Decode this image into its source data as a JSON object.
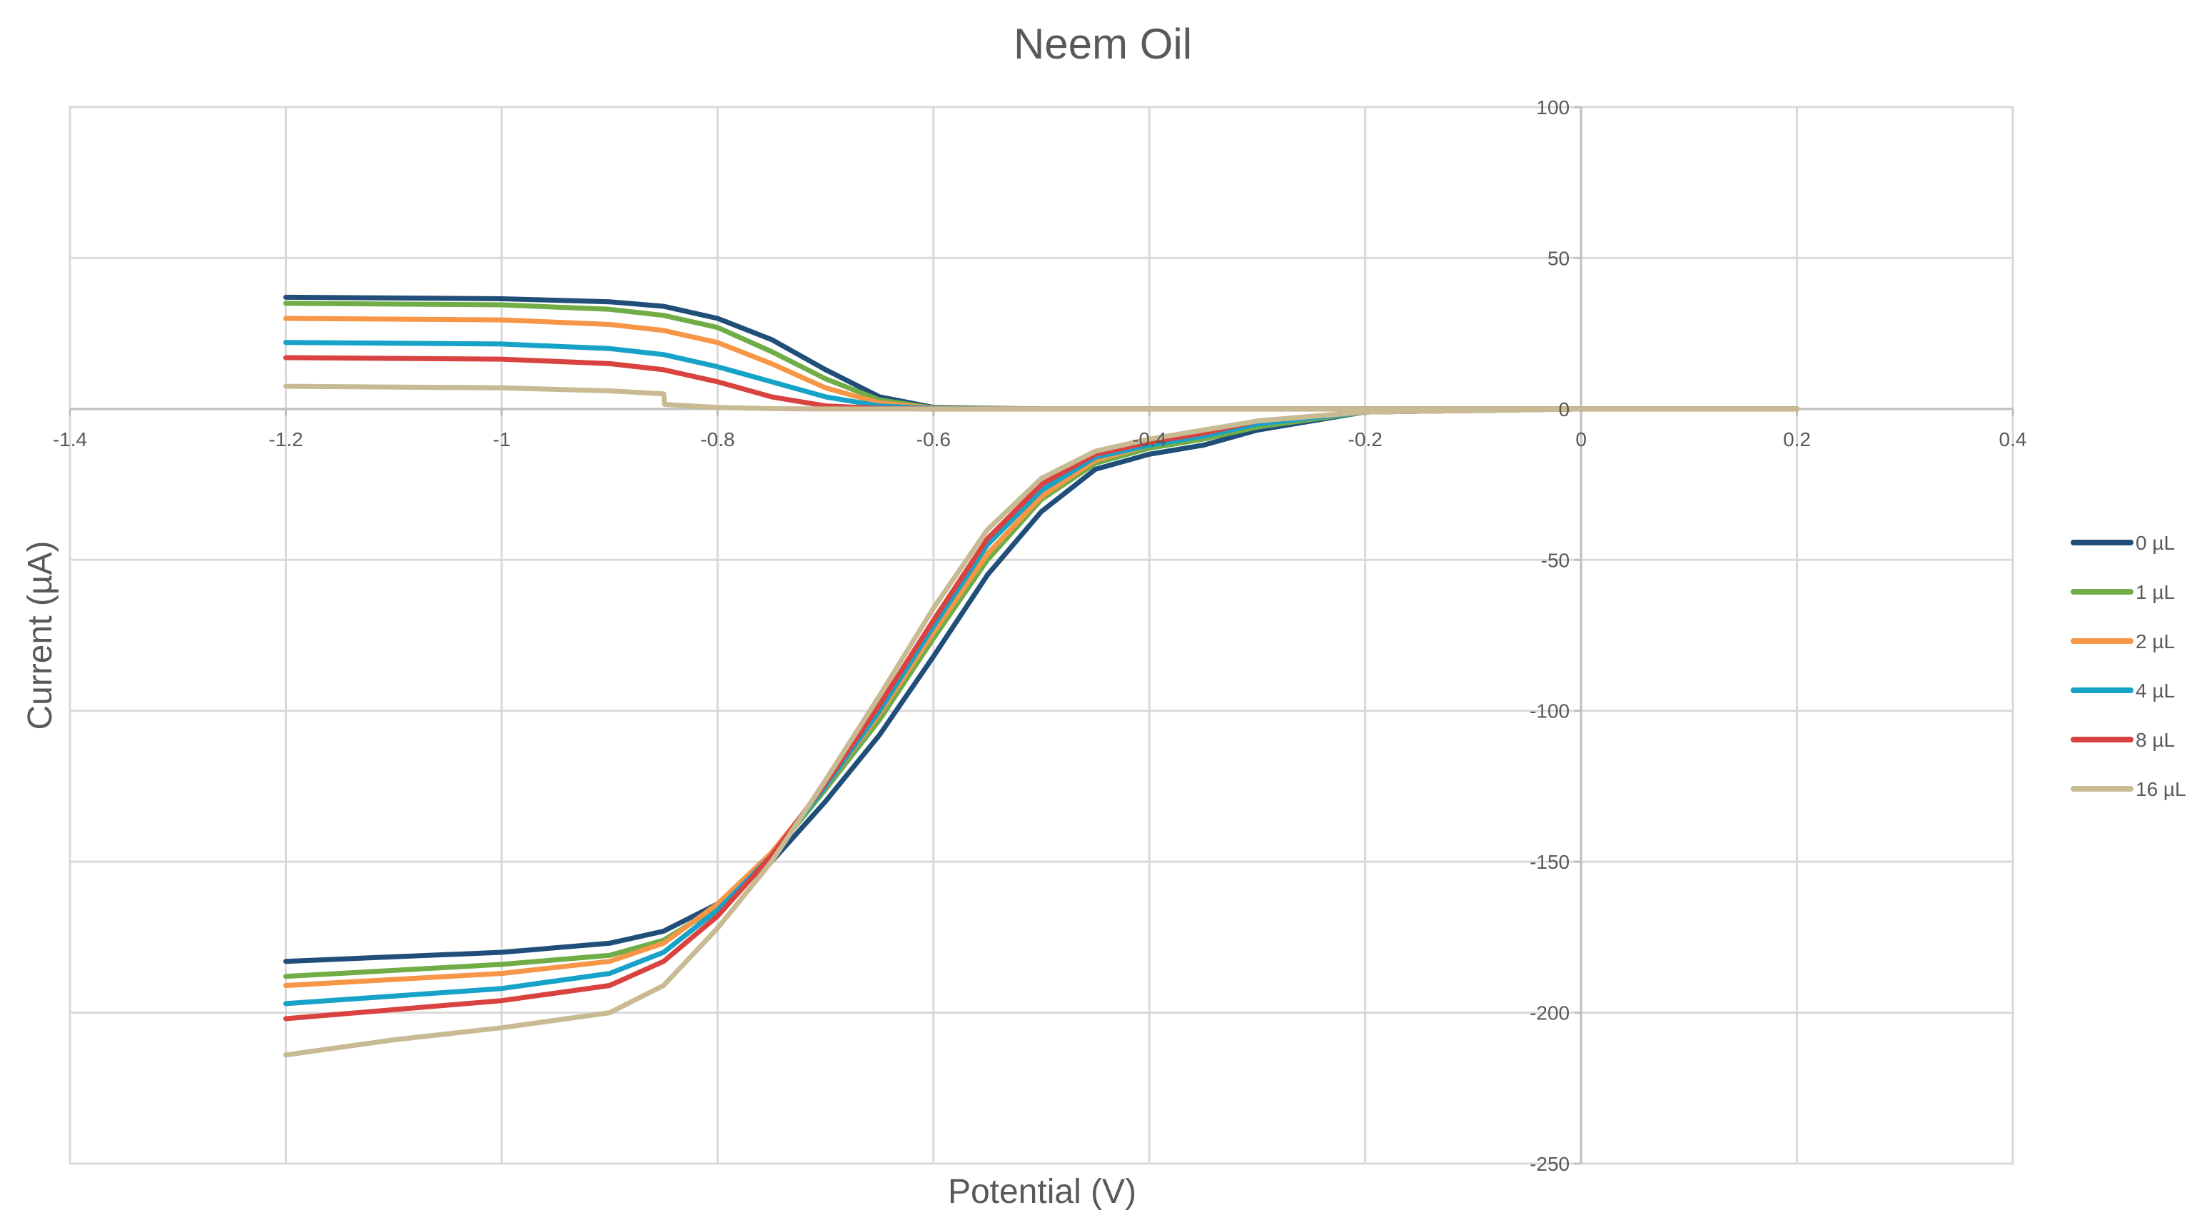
{
  "chart_data": {
    "type": "line",
    "title": "Neem Oil",
    "xlabel": "Potential (V)",
    "ylabel": "Current (µA)",
    "xlim": [
      -1.4,
      0.4
    ],
    "ylim": [
      -250,
      100
    ],
    "x_ticks": [
      -1.4,
      -1.2,
      -1,
      -0.8,
      -0.6,
      -0.4,
      -0.2,
      0,
      0.2,
      0.4
    ],
    "x_tick_labels": [
      "-1.4",
      "-1.2",
      "-1",
      "-0.8",
      "-0.6",
      "-0.4",
      "-0.2",
      "0",
      "0.2",
      "0.4"
    ],
    "y_ticks": [
      100,
      50,
      0,
      -50,
      -100,
      -150,
      -200,
      -250
    ],
    "y_tick_labels": [
      "100",
      "50",
      "0",
      "-50",
      "-100",
      "-150",
      "-200",
      "-250"
    ],
    "grid": true,
    "legend_position": "right",
    "series": [
      {
        "name": "0 µL",
        "color": "#1f4e79",
        "forward": [
          [
            -1.2,
            37
          ],
          [
            -1.0,
            36.5
          ],
          [
            -0.9,
            35.5
          ],
          [
            -0.85,
            34
          ],
          [
            -0.8,
            30
          ],
          [
            -0.75,
            23
          ],
          [
            -0.7,
            13
          ],
          [
            -0.65,
            4
          ],
          [
            -0.6,
            0.5
          ],
          [
            -0.5,
            0
          ],
          [
            0.2,
            0
          ]
        ],
        "reverse": [
          [
            0.2,
            0
          ],
          [
            0.0,
            0
          ],
          [
            -0.2,
            -1
          ],
          [
            -0.3,
            -7
          ],
          [
            -0.35,
            -12
          ],
          [
            -0.4,
            -15
          ],
          [
            -0.45,
            -20
          ],
          [
            -0.5,
            -34
          ],
          [
            -0.55,
            -55
          ],
          [
            -0.6,
            -82
          ],
          [
            -0.65,
            -108
          ],
          [
            -0.7,
            -130
          ],
          [
            -0.75,
            -150
          ],
          [
            -0.8,
            -164
          ],
          [
            -0.85,
            -173
          ],
          [
            -0.9,
            -177
          ],
          [
            -1.0,
            -180
          ],
          [
            -1.2,
            -183
          ]
        ]
      },
      {
        "name": "1 µL",
        "color": "#70ad47",
        "forward": [
          [
            -1.2,
            35
          ],
          [
            -1.0,
            34.5
          ],
          [
            -0.9,
            33
          ],
          [
            -0.85,
            31
          ],
          [
            -0.8,
            27
          ],
          [
            -0.75,
            19
          ],
          [
            -0.7,
            10
          ],
          [
            -0.65,
            3
          ],
          [
            -0.6,
            0.3
          ],
          [
            -0.5,
            0
          ],
          [
            0.2,
            0
          ]
        ],
        "reverse": [
          [
            0.2,
            0
          ],
          [
            0.0,
            0
          ],
          [
            -0.2,
            -1
          ],
          [
            -0.3,
            -6
          ],
          [
            -0.35,
            -10
          ],
          [
            -0.4,
            -13
          ],
          [
            -0.45,
            -18
          ],
          [
            -0.5,
            -30
          ],
          [
            -0.55,
            -50
          ],
          [
            -0.6,
            -76
          ],
          [
            -0.65,
            -103
          ],
          [
            -0.7,
            -126
          ],
          [
            -0.75,
            -148
          ],
          [
            -0.8,
            -165
          ],
          [
            -0.85,
            -176
          ],
          [
            -0.9,
            -181
          ],
          [
            -1.0,
            -184
          ],
          [
            -1.2,
            -188
          ]
        ]
      },
      {
        "name": "2 µL",
        "color": "#f79646",
        "forward": [
          [
            -1.2,
            30
          ],
          [
            -1.0,
            29.5
          ],
          [
            -0.9,
            28
          ],
          [
            -0.85,
            26
          ],
          [
            -0.8,
            22
          ],
          [
            -0.75,
            15
          ],
          [
            -0.7,
            7
          ],
          [
            -0.65,
            2
          ],
          [
            -0.6,
            0.2
          ],
          [
            -0.5,
            0
          ],
          [
            0.2,
            0
          ]
        ],
        "reverse": [
          [
            0.2,
            0
          ],
          [
            0.0,
            0
          ],
          [
            -0.2,
            -1
          ],
          [
            -0.3,
            -5
          ],
          [
            -0.35,
            -9
          ],
          [
            -0.4,
            -12
          ],
          [
            -0.45,
            -17
          ],
          [
            -0.5,
            -29
          ],
          [
            -0.55,
            -48
          ],
          [
            -0.6,
            -74
          ],
          [
            -0.65,
            -101
          ],
          [
            -0.7,
            -125
          ],
          [
            -0.75,
            -147
          ],
          [
            -0.8,
            -164
          ],
          [
            -0.85,
            -177
          ],
          [
            -0.9,
            -183
          ],
          [
            -1.0,
            -187
          ],
          [
            -1.2,
            -191
          ]
        ]
      },
      {
        "name": "4 µL",
        "color": "#17a2c8",
        "forward": [
          [
            -1.2,
            22
          ],
          [
            -1.0,
            21.5
          ],
          [
            -0.9,
            20
          ],
          [
            -0.85,
            18
          ],
          [
            -0.8,
            14
          ],
          [
            -0.75,
            9
          ],
          [
            -0.7,
            4
          ],
          [
            -0.65,
            1
          ],
          [
            -0.6,
            0.1
          ],
          [
            -0.5,
            0
          ],
          [
            0.2,
            0
          ]
        ],
        "reverse": [
          [
            0.2,
            0
          ],
          [
            0.0,
            0
          ],
          [
            -0.2,
            -1
          ],
          [
            -0.3,
            -5
          ],
          [
            -0.35,
            -9
          ],
          [
            -0.4,
            -12
          ],
          [
            -0.45,
            -16
          ],
          [
            -0.5,
            -27
          ],
          [
            -0.55,
            -45
          ],
          [
            -0.6,
            -72
          ],
          [
            -0.65,
            -100
          ],
          [
            -0.7,
            -125
          ],
          [
            -0.75,
            -148
          ],
          [
            -0.8,
            -166
          ],
          [
            -0.85,
            -180
          ],
          [
            -0.9,
            -187
          ],
          [
            -1.0,
            -192
          ],
          [
            -1.2,
            -197
          ]
        ]
      },
      {
        "name": "8 µL",
        "color": "#d9423f",
        "forward": [
          [
            -1.2,
            17
          ],
          [
            -1.0,
            16.5
          ],
          [
            -0.9,
            15
          ],
          [
            -0.85,
            13
          ],
          [
            -0.8,
            9
          ],
          [
            -0.75,
            4
          ],
          [
            -0.7,
            1
          ],
          [
            -0.65,
            0.2
          ],
          [
            -0.6,
            0
          ],
          [
            -0.5,
            0
          ],
          [
            0.2,
            0
          ]
        ],
        "reverse": [
          [
            0.2,
            0
          ],
          [
            0.0,
            0
          ],
          [
            -0.2,
            -1
          ],
          [
            -0.3,
            -4
          ],
          [
            -0.35,
            -8
          ],
          [
            -0.4,
            -11
          ],
          [
            -0.45,
            -15
          ],
          [
            -0.5,
            -25
          ],
          [
            -0.55,
            -43
          ],
          [
            -0.6,
            -70
          ],
          [
            -0.65,
            -98
          ],
          [
            -0.7,
            -124
          ],
          [
            -0.75,
            -148
          ],
          [
            -0.8,
            -168
          ],
          [
            -0.85,
            -183
          ],
          [
            -0.9,
            -191
          ],
          [
            -1.0,
            -196
          ],
          [
            -1.2,
            -202
          ]
        ]
      },
      {
        "name": "16 µL",
        "color": "#c8bb93",
        "forward": [
          [
            -1.2,
            7.5
          ],
          [
            -1.0,
            7
          ],
          [
            -0.9,
            6
          ],
          [
            -0.85,
            5
          ],
          [
            -0.849,
            1.5
          ],
          [
            -0.8,
            0.5
          ],
          [
            -0.75,
            0.1
          ],
          [
            -0.7,
            0
          ],
          [
            -0.5,
            0
          ],
          [
            0.2,
            0
          ]
        ],
        "reverse": [
          [
            0.2,
            0
          ],
          [
            0.0,
            0
          ],
          [
            -0.2,
            -1
          ],
          [
            -0.3,
            -4
          ],
          [
            -0.35,
            -7
          ],
          [
            -0.4,
            -10
          ],
          [
            -0.45,
            -14
          ],
          [
            -0.5,
            -23
          ],
          [
            -0.55,
            -40
          ],
          [
            -0.6,
            -66
          ],
          [
            -0.65,
            -95
          ],
          [
            -0.7,
            -123
          ],
          [
            -0.75,
            -150
          ],
          [
            -0.8,
            -172
          ],
          [
            -0.85,
            -191
          ],
          [
            -0.9,
            -200
          ],
          [
            -1.0,
            -205
          ],
          [
            -1.1,
            -209
          ],
          [
            -1.2,
            -214
          ]
        ]
      }
    ]
  }
}
